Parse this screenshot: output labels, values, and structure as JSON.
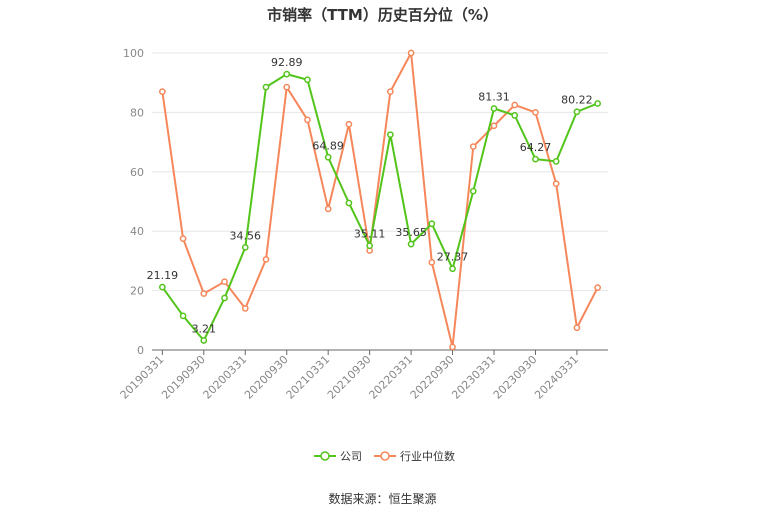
{
  "chart_data": {
    "type": "line",
    "title": "市销率（TTM）历史百分位（%）",
    "source": "数据来源：恒生聚源",
    "ylim": [
      0,
      100
    ],
    "yticks": [
      0,
      20,
      40,
      60,
      80,
      100
    ],
    "grid": true,
    "legend_position": "bottom",
    "x": [
      "20190331",
      "20190630",
      "20190930",
      "20191231",
      "20200331",
      "20200630",
      "20200930",
      "20201231",
      "20210331",
      "20210630",
      "20210930",
      "20211231",
      "20220331",
      "20220630",
      "20220930",
      "20221231",
      "20230331",
      "20230630",
      "20230930",
      "20231231",
      "20240331",
      "20240630"
    ],
    "xtick_labels": [
      "20190331",
      "20190930",
      "20200331",
      "20200930",
      "20210331",
      "20210930",
      "20220331",
      "20220930",
      "20230331",
      "20230930",
      "20240331"
    ],
    "series": [
      {
        "name": "公司",
        "color": "#52c41a",
        "values": [
          21.19,
          11.5,
          3.21,
          17.5,
          34.56,
          88.5,
          92.89,
          91.0,
          64.89,
          49.5,
          35.11,
          72.5,
          35.65,
          42.5,
          27.37,
          53.5,
          81.31,
          79.0,
          64.27,
          63.5,
          80.22,
          83.0
        ],
        "labels": [
          "21.19",
          "",
          "3.21",
          "",
          "34.56",
          "",
          "92.89",
          "",
          "64.89",
          "",
          "35.11",
          "",
          "35.65",
          "",
          "27.37",
          "",
          "81.31",
          "",
          "64.27",
          "",
          "80.22",
          ""
        ]
      },
      {
        "name": "行业中位数",
        "color": "#f5875a",
        "values": [
          87.0,
          37.5,
          19.0,
          23.0,
          14.0,
          30.5,
          88.5,
          77.5,
          47.5,
          76.0,
          33.5,
          87.0,
          100.0,
          29.5,
          1.0,
          68.5,
          75.5,
          82.5,
          80.0,
          56.0,
          7.5,
          21.0
        ]
      }
    ]
  }
}
